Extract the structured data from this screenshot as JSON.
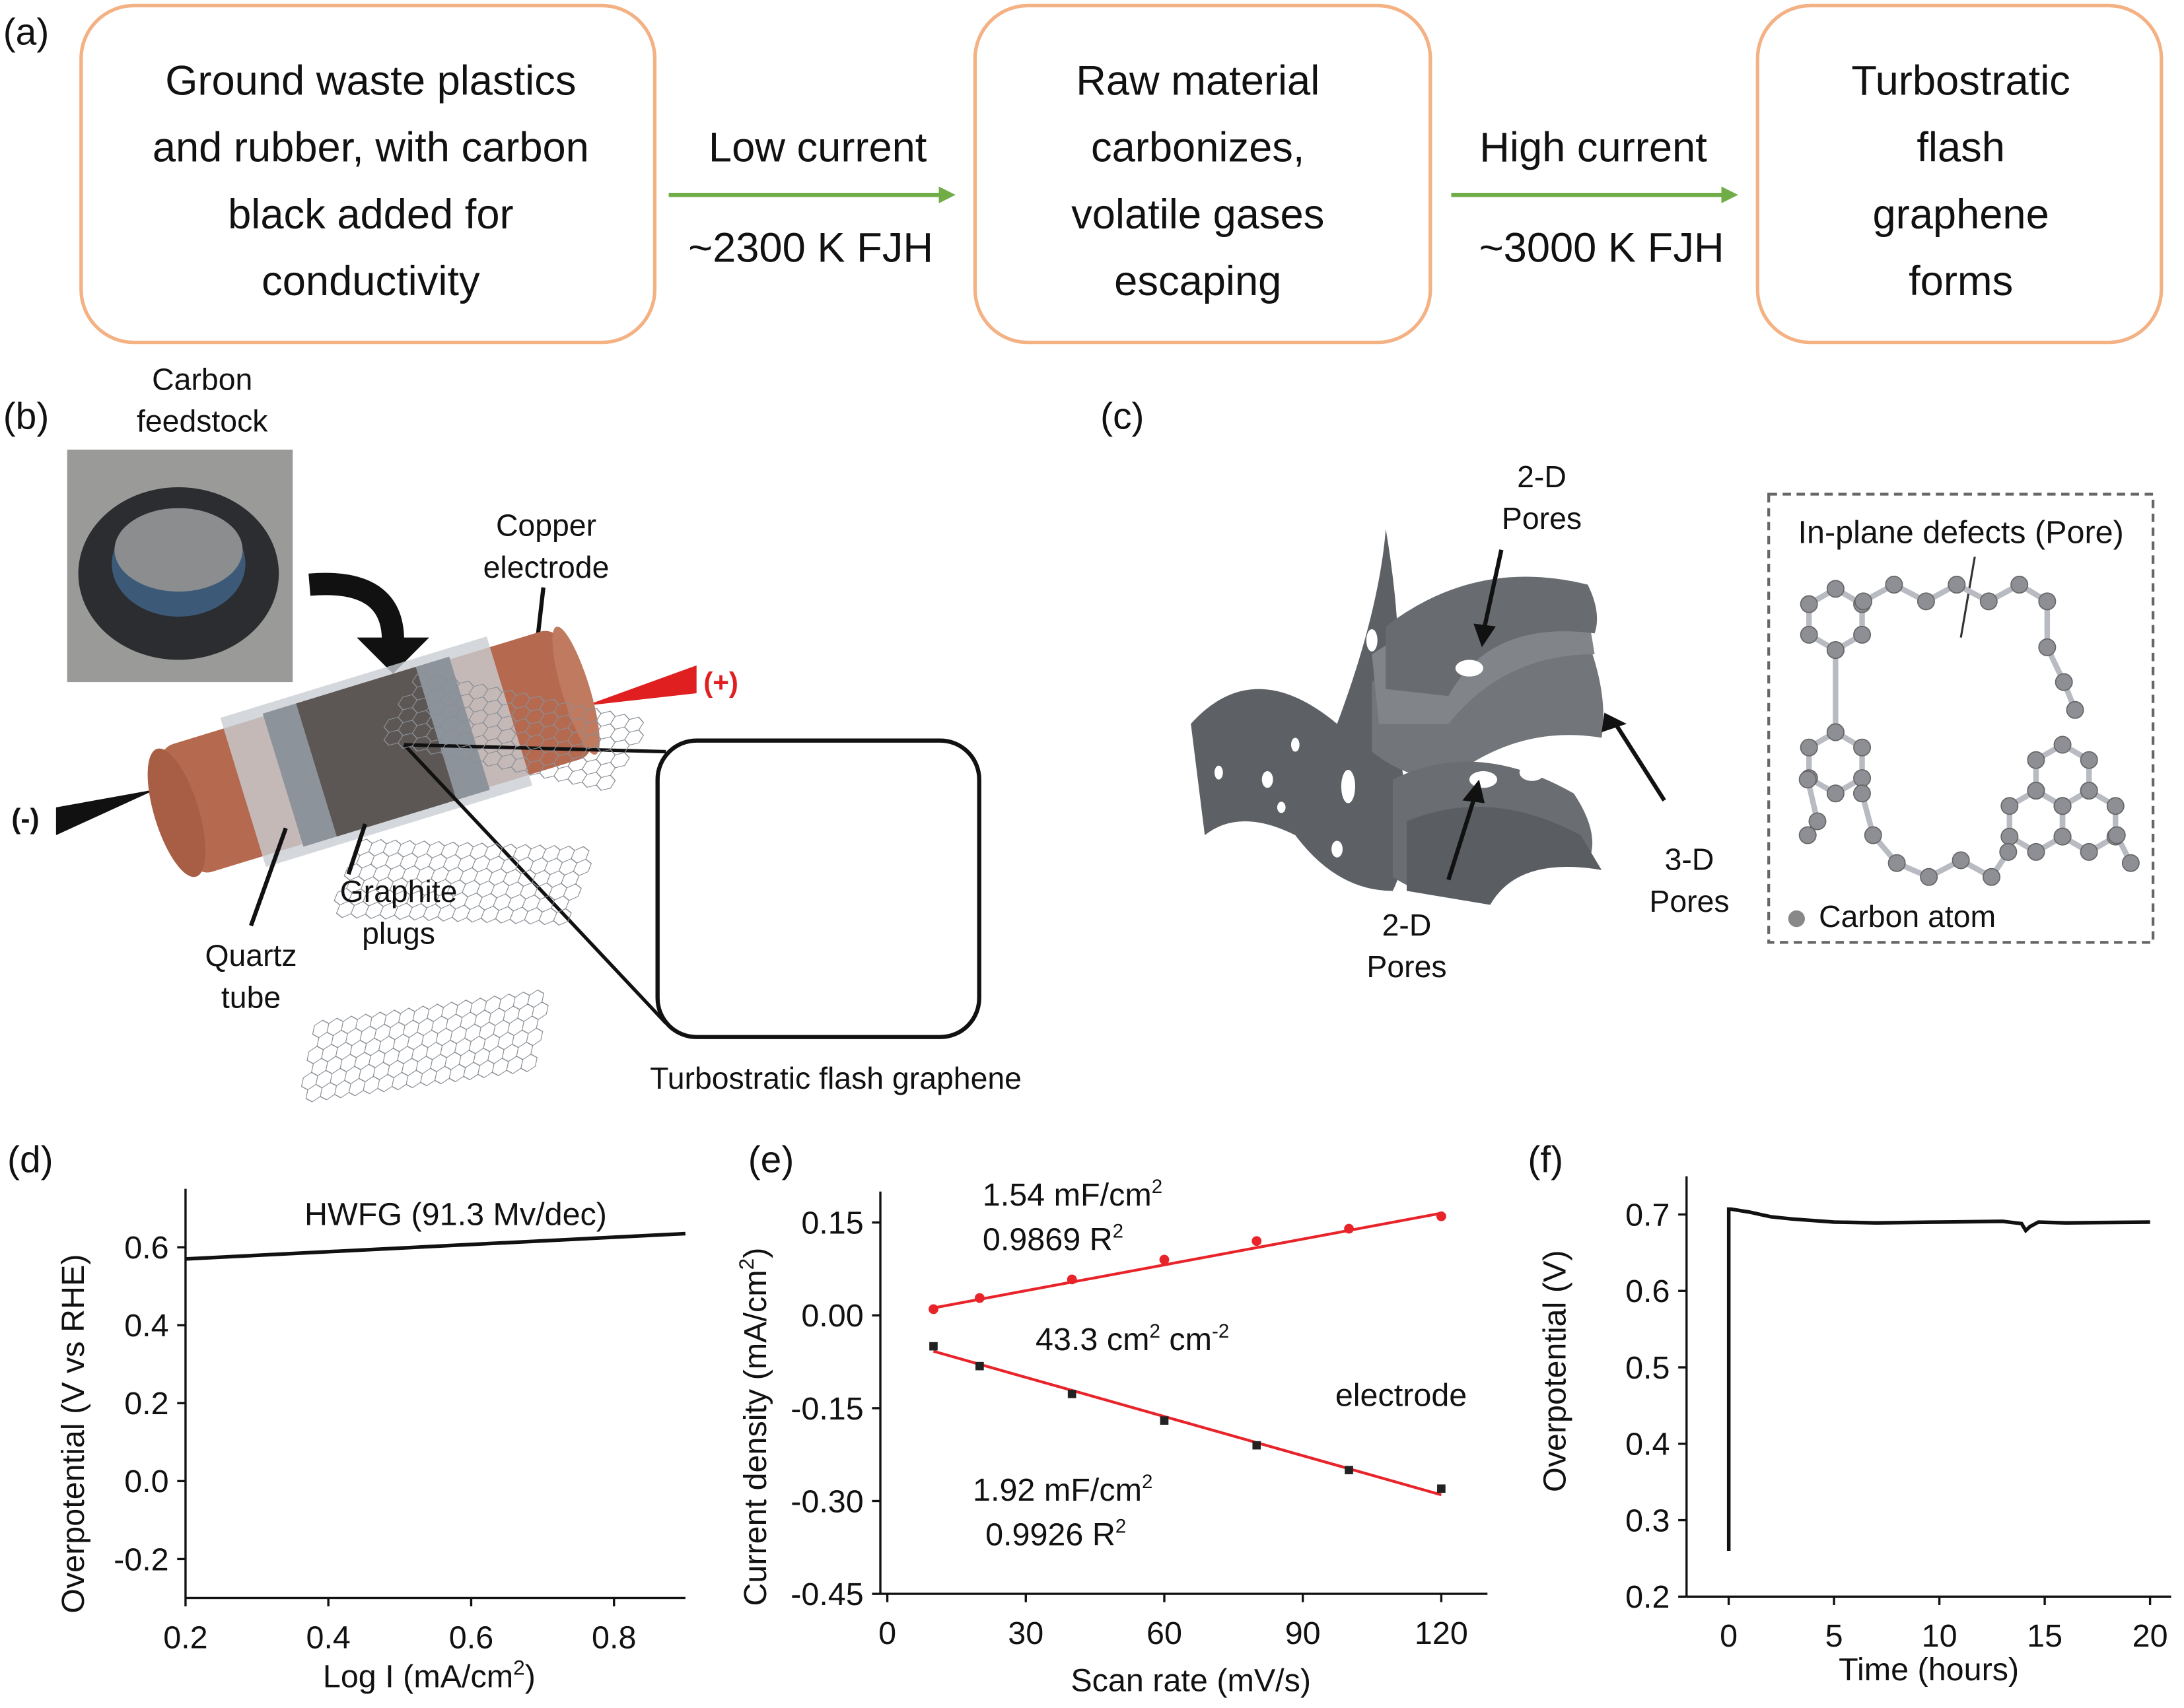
{
  "panel_a": {
    "label": "(a)",
    "box1": [
      "Ground waste plastics",
      "and rubber, with carbon",
      "black added for",
      "conductivity"
    ],
    "arrow1": [
      "Low current",
      "~2300 K FJH"
    ],
    "box2": [
      "Raw material",
      "carbonizes,",
      "volatile gases",
      "escaping"
    ],
    "arrow2": [
      "High current",
      "~3000 K FJH"
    ],
    "box3": [
      "Turbostratic",
      "flash",
      "graphene",
      "forms"
    ],
    "box_border_color": "#f4b183",
    "arrow_color": "#70ad47"
  },
  "panel_b": {
    "label": "(b)",
    "feedstock": [
      "Carbon",
      "feedstock"
    ],
    "copper": [
      "Copper",
      "electrode"
    ],
    "plus": "(+)",
    "minus": "(-)",
    "graphite": [
      "Graphite",
      "plugs"
    ],
    "quartz": [
      "Quartz",
      "tube"
    ],
    "inset_caption": "Turbostratic flash graphene",
    "copper_color": "#b5694f",
    "positive_color": "#e02020"
  },
  "panel_c": {
    "label": "(c)",
    "pores_top": [
      "2-D",
      "Pores"
    ],
    "pores_3d": [
      "3-D",
      "Pores"
    ],
    "pores_bottom": [
      "2-D",
      "Pores"
    ],
    "defects": "In-plane defects (Pore)",
    "carbon_atom": "Carbon atom"
  },
  "chart_data": [
    {
      "panel": "(d)",
      "type": "line",
      "xlabel": "Log I (mA/cm",
      "xlabel_sup": "2",
      "xlabel_end": ")",
      "ylabel": "Overpotential (V vs RHE)",
      "xlim": [
        0.2,
        0.9
      ],
      "ylim": [
        -0.3,
        0.75
      ],
      "xticks": [
        "0.2",
        "0.4",
        "0.6",
        "0.8"
      ],
      "yticks": [
        "-0.2",
        "0.0",
        "0.2",
        "0.4",
        "0.6"
      ],
      "annotation": "HWFG (91.3 Mv/dec)",
      "series": [
        {
          "x": [
            0.2,
            0.9
          ],
          "y": [
            0.57,
            0.635
          ],
          "color": "#111111"
        }
      ]
    },
    {
      "panel": "(e)",
      "type": "scatter",
      "xlabel": "Scan rate (mV/s)",
      "ylabel": "Current density (mA/cm",
      "ylabel_sup": "2",
      "ylabel_end": ")",
      "xlim": [
        0,
        130
      ],
      "ylim": [
        -0.45,
        0.2
      ],
      "xticks": [
        "0",
        "30",
        "60",
        "90",
        "120"
      ],
      "yticks": [
        "-0.45",
        "-0.30",
        "-0.15",
        "0.00",
        "0.15"
      ],
      "annotations": {
        "top_cap": "1.54 mF/cm",
        "top_cap_sup": "2",
        "top_r2": "0.9869 R",
        "top_r2_sup": "2",
        "ecsa": "43.3 cm",
        "ecsa_sup1": "2",
        "ecsa_mid": " cm",
        "ecsa_sup2": "-2",
        "electrode": "electrode",
        "bot_cap": "1.92 mF/cm",
        "bot_cap_sup": "2",
        "bot_r2": "0.9926 R",
        "bot_r2_sup": "2"
      },
      "fit_color": "#e8232a",
      "series": [
        {
          "x": [
            10,
            20,
            40,
            60,
            80,
            100,
            120
          ],
          "y": [
            0.01,
            0.028,
            0.058,
            0.09,
            0.12,
            0.14,
            0.16
          ],
          "color": "#e8232a",
          "fit": [
            0.012,
            0.165
          ]
        },
        {
          "x": [
            10,
            20,
            40,
            60,
            80,
            100,
            120
          ],
          "y": [
            -0.05,
            -0.082,
            -0.127,
            -0.17,
            -0.21,
            -0.25,
            -0.28
          ],
          "color": "#222222",
          "fit": [
            -0.058,
            -0.29
          ]
        }
      ]
    },
    {
      "panel": "(f)",
      "type": "line",
      "xlabel": "Time (hours)",
      "ylabel": "Overpotential (V)",
      "xlim": [
        -2,
        21
      ],
      "ylim": [
        0.2,
        0.75
      ],
      "xticks": [
        "0",
        "5",
        "10",
        "15",
        "20"
      ],
      "yticks": [
        "0.2",
        "0.3",
        "0.4",
        "0.5",
        "0.6",
        "0.7"
      ],
      "series": [
        {
          "x": [
            0,
            0,
            0.1,
            1,
            2,
            3,
            5,
            7,
            10,
            13,
            13.9,
            14.1,
            14.3,
            14.7,
            16,
            20
          ],
          "y": [
            0.26,
            0.707,
            0.707,
            0.703,
            0.697,
            0.694,
            0.69,
            0.689,
            0.69,
            0.691,
            0.688,
            0.679,
            0.684,
            0.69,
            0.689,
            0.69
          ],
          "color": "#111111"
        }
      ]
    }
  ]
}
